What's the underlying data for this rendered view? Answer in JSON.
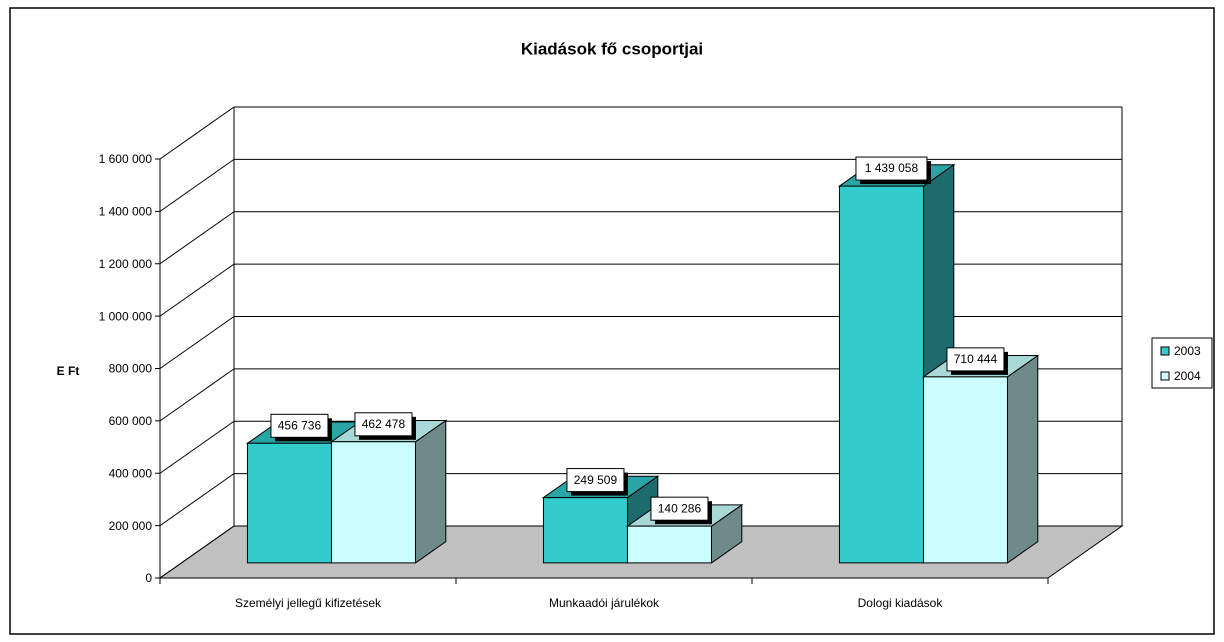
{
  "chart_data": {
    "type": "bar3d",
    "title": "Kiadások fő csoportjai",
    "y_label": "E Ft",
    "categories": [
      "Személyi jellegű kifizetések",
      "Munkaadói járulékok",
      "Dologi kiadások"
    ],
    "series": [
      {
        "name": "2003",
        "color": "#33CCCC",
        "side_color": "#1E6B6E",
        "top_color": "#2AA5A5",
        "values": [
          456736,
          249509,
          1439058
        ],
        "value_labels": [
          "456 736",
          "249 509",
          "1 439 058"
        ]
      },
      {
        "name": "2004",
        "color": "#CCFFFF",
        "side_color": "#6E8A8A",
        "top_color": "#A8D8D8",
        "values": [
          462478,
          140286,
          710444
        ],
        "value_labels": [
          "462 478",
          "140 286",
          "710 444"
        ]
      }
    ],
    "ylim": [
      0,
      1600000
    ],
    "yticks": [
      0,
      {
        "value": 200000,
        "label": "200 000"
      },
      {
        "value": 400000,
        "label": "400 000"
      },
      {
        "value": 600000,
        "label": "600 000"
      },
      {
        "value": 800000,
        "label": "800 000"
      },
      {
        "value": 1000000,
        "label": "1 000 000"
      },
      {
        "value": 1200000,
        "label": "1 200 000"
      },
      {
        "value": 1400000,
        "label": "1 400 000"
      },
      {
        "value": 1600000,
        "label": "1 600 000"
      }
    ],
    "grid": true,
    "legend": "right"
  }
}
